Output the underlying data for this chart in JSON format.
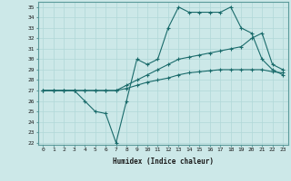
{
  "xlabel": "Humidex (Indice chaleur)",
  "bg_color": "#cce8e8",
  "grid_color": "#b0d8d8",
  "line_color": "#1a6b6b",
  "xlim": [
    -0.5,
    23.5
  ],
  "ylim": [
    21.8,
    35.5
  ],
  "xticks": [
    0,
    1,
    2,
    3,
    4,
    5,
    6,
    7,
    8,
    9,
    10,
    11,
    12,
    13,
    14,
    15,
    16,
    17,
    18,
    19,
    20,
    21,
    22,
    23
  ],
  "yticks": [
    22,
    23,
    24,
    25,
    26,
    27,
    28,
    29,
    30,
    31,
    32,
    33,
    34,
    35
  ],
  "line1_x": [
    0,
    1,
    2,
    3,
    4,
    5,
    6,
    7,
    8,
    9,
    10,
    11,
    12,
    13,
    14,
    15,
    16,
    17,
    18,
    19,
    20,
    21,
    22,
    23
  ],
  "line1_y": [
    27,
    27,
    27,
    27,
    26,
    25,
    24.8,
    22,
    26,
    30,
    29.5,
    30,
    33,
    35,
    34.5,
    34.5,
    34.5,
    34.5,
    35,
    33,
    32.5,
    30,
    29,
    28.5
  ],
  "line2_x": [
    0,
    1,
    2,
    3,
    4,
    5,
    6,
    7,
    8,
    9,
    10,
    11,
    12,
    13,
    14,
    15,
    16,
    17,
    18,
    19,
    20,
    21,
    22,
    23
  ],
  "line2_y": [
    27,
    27,
    27,
    27,
    27,
    27,
    27,
    27,
    27.5,
    28,
    28.5,
    29,
    29.5,
    30,
    30.2,
    30.4,
    30.6,
    30.8,
    31,
    31.2,
    32,
    32.5,
    29.5,
    29
  ],
  "line3_x": [
    0,
    1,
    2,
    3,
    4,
    5,
    6,
    7,
    8,
    9,
    10,
    11,
    12,
    13,
    14,
    15,
    16,
    17,
    18,
    19,
    20,
    21,
    22,
    23
  ],
  "line3_y": [
    27,
    27,
    27,
    27,
    27,
    27,
    27,
    27,
    27.2,
    27.5,
    27.8,
    28,
    28.2,
    28.5,
    28.7,
    28.8,
    28.9,
    29.0,
    29.0,
    29.0,
    29.0,
    29.0,
    28.8,
    28.7
  ]
}
